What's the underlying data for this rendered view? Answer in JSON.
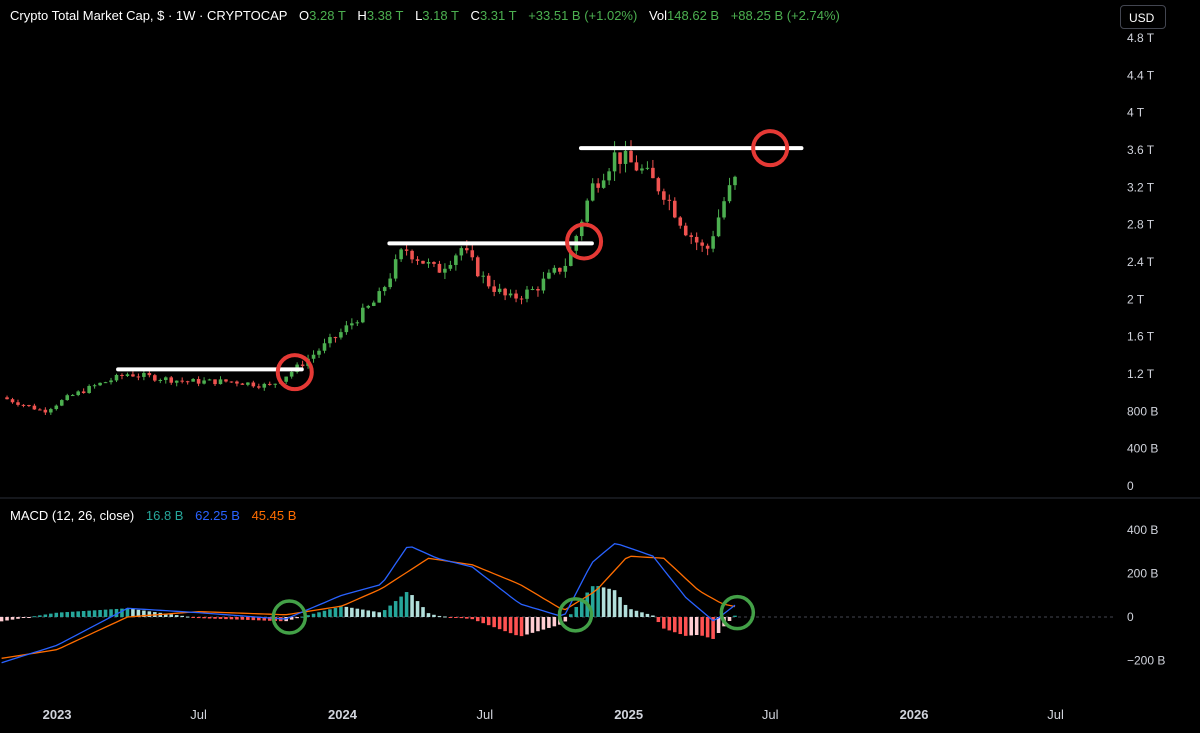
{
  "header": {
    "title": "Crypto Total Market Cap, $ · 1W · CRYPTOCAP",
    "o_label": "O",
    "o_value": "3.28 T",
    "h_label": "H",
    "h_value": "3.38 T",
    "l_label": "L",
    "l_value": "3.18 T",
    "c_label": "C",
    "c_value": "3.31 T",
    "change": "+33.51 B (+1.02%)",
    "vol_label": "Vol",
    "vol_value": "148.62 B",
    "vol_change": "+88.25 B (+2.74%)"
  },
  "currency_button": "USD",
  "macd_header": {
    "label": "MACD (12, 26, close)",
    "hist_value": "16.8 B",
    "macd_value": "62.25 B",
    "signal_value": "45.45 B"
  },
  "colors": {
    "up": "#4caf50",
    "down": "#ef5350",
    "text": "#d1d4dc",
    "hist_pos_strong": "#26a69a",
    "hist_pos_weak": "#b2dfdb",
    "hist_neg_strong": "#ff5252",
    "hist_neg_weak": "#ffcdd2",
    "macd_line": "#2962ff",
    "signal_line": "#ff6d00",
    "annotation_line": "#ffffff",
    "circle_red": "#e53935",
    "circle_green": "#43a047"
  },
  "chart_data": {
    "type": "candlestick",
    "title": "Crypto Total Market Cap, $ · 1W · CRYPTOCAP",
    "interval": "1W",
    "price_axis": {
      "ylim_trillions": [
        0,
        4.8
      ],
      "tick_labels": [
        "4.8 T",
        "4.4 T",
        "4 T",
        "3.6 T",
        "3.2 T",
        "2.8 T",
        "2.4 T",
        "2 T",
        "1.6 T",
        "1.2 T",
        "800 B",
        "400 B",
        "0"
      ],
      "tick_values_trillions": [
        4.8,
        4.4,
        4.0,
        3.6,
        3.2,
        2.8,
        2.4,
        2.0,
        1.6,
        1.2,
        0.8,
        0.4,
        0
      ]
    },
    "time_axis": {
      "tick_labels": [
        "2023",
        "Jul",
        "2024",
        "Jul",
        "2025",
        "Jul",
        "2026",
        "Jul"
      ],
      "tick_dates": [
        "2023-01-01",
        "2023-07-01",
        "2024-01-01",
        "2024-07-01",
        "2025-01-01",
        "2025-07-01",
        "2026-01-01",
        "2026-07-01"
      ],
      "xlim": [
        "2022-10-20",
        "2026-09-15"
      ]
    },
    "price_keypoints": [
      {
        "date": "2022-10-22",
        "close": 0.95
      },
      {
        "date": "2022-12-15",
        "close": 0.8
      },
      {
        "date": "2023-01-15",
        "close": 0.95
      },
      {
        "date": "2023-02-20",
        "close": 1.08
      },
      {
        "date": "2023-04-01",
        "close": 1.2
      },
      {
        "date": "2023-06-15",
        "close": 1.12
      },
      {
        "date": "2023-08-15",
        "close": 1.12
      },
      {
        "date": "2023-10-01",
        "close": 1.07
      },
      {
        "date": "2023-11-01",
        "close": 1.25
      },
      {
        "date": "2023-12-31",
        "close": 1.65
      },
      {
        "date": "2024-02-15",
        "close": 2.0
      },
      {
        "date": "2024-03-20",
        "close": 2.55
      },
      {
        "date": "2024-05-01",
        "close": 2.3
      },
      {
        "date": "2024-06-01",
        "close": 2.55
      },
      {
        "date": "2024-07-01",
        "close": 2.2
      },
      {
        "date": "2024-08-01",
        "close": 2.0
      },
      {
        "date": "2024-09-01",
        "close": 2.1
      },
      {
        "date": "2024-10-15",
        "close": 2.4
      },
      {
        "date": "2024-11-15",
        "close": 3.2
      },
      {
        "date": "2024-12-15",
        "close": 3.55
      },
      {
        "date": "2025-01-15",
        "close": 3.4
      },
      {
        "date": "2025-02-15",
        "close": 3.15
      },
      {
        "date": "2025-03-15",
        "close": 2.75
      },
      {
        "date": "2025-04-10",
        "close": 2.5
      },
      {
        "date": "2025-05-05",
        "close": 3.1
      },
      {
        "date": "2025-05-20",
        "close": 3.31
      }
    ],
    "annotations": {
      "resistance_lines": [
        {
          "from": "2023-03-20",
          "to": "2023-11-10",
          "level_trillions": 1.25
        },
        {
          "from": "2024-03-01",
          "to": "2024-11-15",
          "level_trillions": 2.6
        },
        {
          "from": "2024-11-01",
          "to": "2025-08-10",
          "level_trillions": 3.62
        }
      ],
      "red_circles": [
        {
          "date": "2023-11-01",
          "level_trillions": 1.22
        },
        {
          "date": "2024-11-05",
          "level_trillions": 2.62
        },
        {
          "date": "2025-07-01",
          "level_trillions": 3.62
        }
      ],
      "green_circles": [
        {
          "date": "2023-10-25",
          "level_billions": 0
        },
        {
          "date": "2024-10-25",
          "level_billions": 10
        },
        {
          "date": "2025-05-20",
          "level_billions": 20
        }
      ]
    },
    "macd": {
      "name": "MACD (12, 26, close)",
      "ylim_billions": [
        -260,
        470
      ],
      "tick_labels": [
        "400 B",
        "200 B",
        "0",
        "−200 B"
      ],
      "tick_values_billions": [
        400,
        200,
        0,
        -200
      ],
      "macd_keypoints": [
        {
          "date": "2022-10-22",
          "value": -210
        },
        {
          "date": "2023-01-01",
          "value": -130
        },
        {
          "date": "2023-04-01",
          "value": 40
        },
        {
          "date": "2023-07-01",
          "value": 20
        },
        {
          "date": "2023-10-20",
          "value": -10
        },
        {
          "date": "2023-12-31",
          "value": 100
        },
        {
          "date": "2024-02-20",
          "value": 150
        },
        {
          "date": "2024-03-25",
          "value": 330
        },
        {
          "date": "2024-05-01",
          "value": 270
        },
        {
          "date": "2024-06-15",
          "value": 230
        },
        {
          "date": "2024-08-15",
          "value": 60
        },
        {
          "date": "2024-10-10",
          "value": 0
        },
        {
          "date": "2024-11-15",
          "value": 250
        },
        {
          "date": "2024-12-15",
          "value": 340
        },
        {
          "date": "2025-02-01",
          "value": 280
        },
        {
          "date": "2025-03-15",
          "value": 90
        },
        {
          "date": "2025-04-20",
          "value": -20
        },
        {
          "date": "2025-05-20",
          "value": 62.25
        }
      ],
      "signal_keypoints": [
        {
          "date": "2022-10-22",
          "value": -190
        },
        {
          "date": "2023-01-01",
          "value": -150
        },
        {
          "date": "2023-04-01",
          "value": 0
        },
        {
          "date": "2023-07-01",
          "value": 25
        },
        {
          "date": "2023-10-20",
          "value": 10
        },
        {
          "date": "2023-12-31",
          "value": 50
        },
        {
          "date": "2024-02-20",
          "value": 130
        },
        {
          "date": "2024-04-20",
          "value": 270
        },
        {
          "date": "2024-06-15",
          "value": 240
        },
        {
          "date": "2024-08-15",
          "value": 150
        },
        {
          "date": "2024-10-10",
          "value": 30
        },
        {
          "date": "2024-11-20",
          "value": 120
        },
        {
          "date": "2024-12-31",
          "value": 280
        },
        {
          "date": "2025-02-15",
          "value": 270
        },
        {
          "date": "2025-04-01",
          "value": 120
        },
        {
          "date": "2025-05-01",
          "value": 60
        },
        {
          "date": "2025-05-20",
          "value": 45.45
        }
      ]
    },
    "legend": "none",
    "grid": false
  }
}
